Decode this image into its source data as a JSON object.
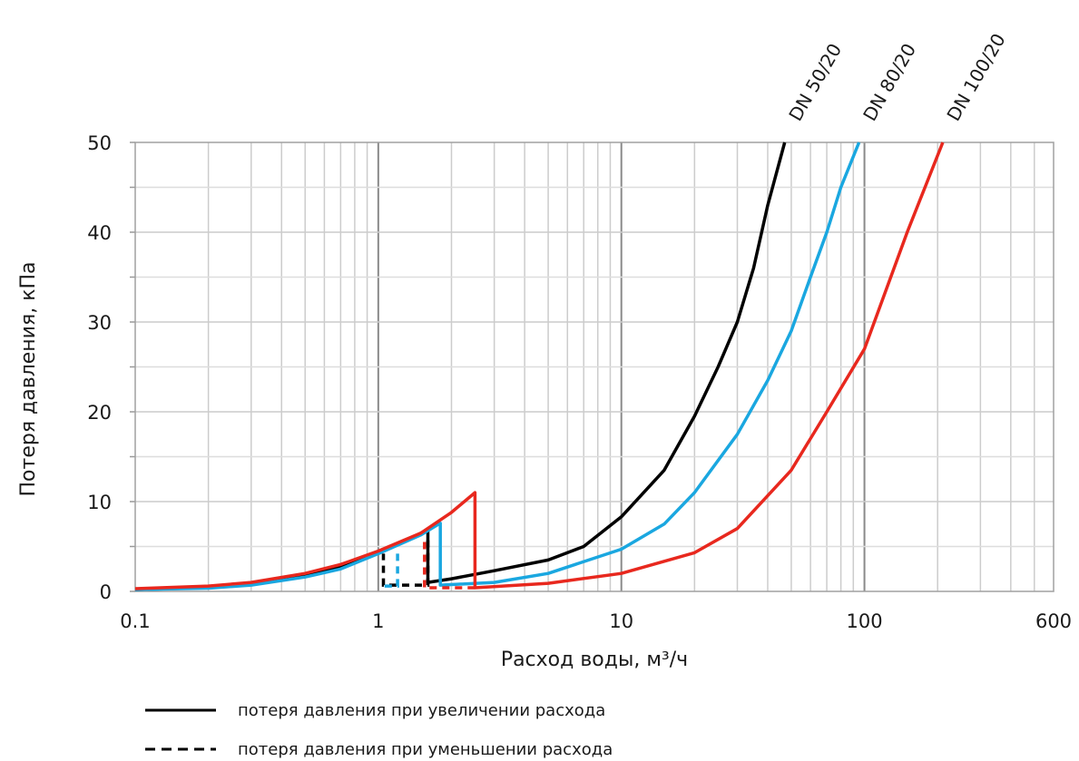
{
  "chart_data": {
    "type": "line",
    "xscale": "log",
    "xlim": [
      0.1,
      600
    ],
    "ylim": [
      0,
      50
    ],
    "grid": true,
    "xlabel": "Расход воды, м³/ч",
    "ylabel": "Потеря давления, кПа",
    "xtick_labels": [
      "0.1",
      "1",
      "10",
      "100",
      "600"
    ],
    "xtick_values": [
      0.1,
      1,
      10,
      100,
      600
    ],
    "ytick_labels": [
      "0",
      "10",
      "20",
      "30",
      "40",
      "50"
    ],
    "ytick_values": [
      0,
      10,
      20,
      30,
      40,
      50
    ],
    "series": [
      {
        "name": "DN 50/20",
        "color": "#000000",
        "increasing": [
          [
            0.1,
            0.2
          ],
          [
            0.2,
            0.4
          ],
          [
            0.3,
            0.8
          ],
          [
            0.5,
            1.8
          ],
          [
            0.7,
            2.7
          ],
          [
            1.0,
            4.3
          ],
          [
            1.3,
            5.6
          ],
          [
            1.6,
            6.9
          ],
          [
            1.6,
            1.0
          ],
          [
            2,
            1.4
          ],
          [
            3,
            2.3
          ],
          [
            5,
            3.5
          ],
          [
            7,
            5.0
          ],
          [
            10,
            8.3
          ],
          [
            15,
            13.5
          ],
          [
            20,
            19.5
          ],
          [
            25,
            25.0
          ],
          [
            30,
            30.0
          ],
          [
            35,
            36.0
          ],
          [
            40,
            43.0
          ],
          [
            47,
            50.0
          ]
        ],
        "decreasing": [
          [
            1.6,
            5.7
          ],
          [
            1.6,
            0.7
          ],
          [
            1.2,
            0.7
          ],
          [
            1.05,
            0.7
          ],
          [
            1.05,
            4.2
          ]
        ]
      },
      {
        "name": "DN 80/20",
        "color": "#1aa7e0",
        "increasing": [
          [
            0.1,
            0.2
          ],
          [
            0.2,
            0.35
          ],
          [
            0.3,
            0.7
          ],
          [
            0.5,
            1.6
          ],
          [
            0.7,
            2.5
          ],
          [
            1.0,
            4.2
          ],
          [
            1.5,
            6.3
          ],
          [
            1.8,
            7.6
          ],
          [
            1.8,
            0.7
          ],
          [
            3,
            1.0
          ],
          [
            5,
            2.0
          ],
          [
            10,
            4.7
          ],
          [
            15,
            7.5
          ],
          [
            20,
            11.0
          ],
          [
            30,
            17.5
          ],
          [
            40,
            23.5
          ],
          [
            50,
            29.0
          ],
          [
            60,
            35.0
          ],
          [
            70,
            40.0
          ],
          [
            80,
            45.0
          ],
          [
            95,
            50.0
          ]
        ],
        "decreasing": [
          [
            1.2,
            4.2
          ],
          [
            1.2,
            0.6
          ],
          [
            1.05,
            0.6
          ]
        ]
      },
      {
        "name": "DN 100/20",
        "color": "#e8281e",
        "increasing": [
          [
            0.1,
            0.3
          ],
          [
            0.2,
            0.6
          ],
          [
            0.3,
            1.0
          ],
          [
            0.5,
            2.0
          ],
          [
            0.7,
            3.0
          ],
          [
            1.0,
            4.5
          ],
          [
            1.5,
            6.5
          ],
          [
            2.0,
            8.8
          ],
          [
            2.5,
            11.0
          ],
          [
            2.5,
            0.4
          ],
          [
            5,
            0.9
          ],
          [
            10,
            2.0
          ],
          [
            20,
            4.3
          ],
          [
            30,
            7.0
          ],
          [
            50,
            13.5
          ],
          [
            70,
            20.0
          ],
          [
            100,
            27.0
          ],
          [
            150,
            40.0
          ],
          [
            210,
            50.0
          ]
        ],
        "decreasing": [
          [
            1.55,
            5.5
          ],
          [
            1.55,
            0.4
          ],
          [
            2.5,
            0.4
          ]
        ]
      }
    ],
    "legend": {
      "placement": "bottom-left",
      "entries": [
        {
          "style": "solid",
          "label": "потеря давления при увеличении расхода"
        },
        {
          "style": "dashed",
          "label": "потеря давления при уменьшении расхода"
        }
      ]
    }
  }
}
